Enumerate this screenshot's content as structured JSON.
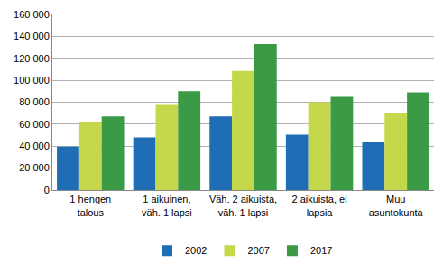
{
  "chart_data": {
    "type": "bar",
    "categories": [
      "1 hengen\ntalous",
      "1 aikuinen,\nväh. 1 lapsi",
      "Väh. 2 aikuista,\nväh. 1 lapsi",
      "2 aikuista, ei\nlapsia",
      "Muu\nasuntokunta"
    ],
    "series": [
      {
        "name": "2002",
        "color": "#1f6db5",
        "values": [
          39500,
          48000,
          67000,
          50500,
          43500
        ]
      },
      {
        "name": "2007",
        "color": "#c5d84b",
        "values": [
          61500,
          77500,
          108500,
          80000,
          70000
        ]
      },
      {
        "name": "2017",
        "color": "#3a9a46",
        "values": [
          67000,
          90000,
          133000,
          85000,
          89000
        ]
      }
    ],
    "ylim": [
      0,
      160000
    ],
    "yticks": [
      0,
      {
        "value": 20000,
        "label": "20 000"
      },
      {
        "value": 40000,
        "label": "40 000"
      },
      {
        "value": 60000,
        "label": "60 000"
      },
      {
        "value": 80000,
        "label": "80 000"
      },
      {
        "value": 100000,
        "label": "100 000"
      },
      {
        "value": 120000,
        "label": "120 000"
      },
      {
        "value": 140000,
        "label": "140 000"
      },
      {
        "value": 160000,
        "label": "160 000"
      }
    ],
    "grid": true,
    "legend": "bottom"
  }
}
